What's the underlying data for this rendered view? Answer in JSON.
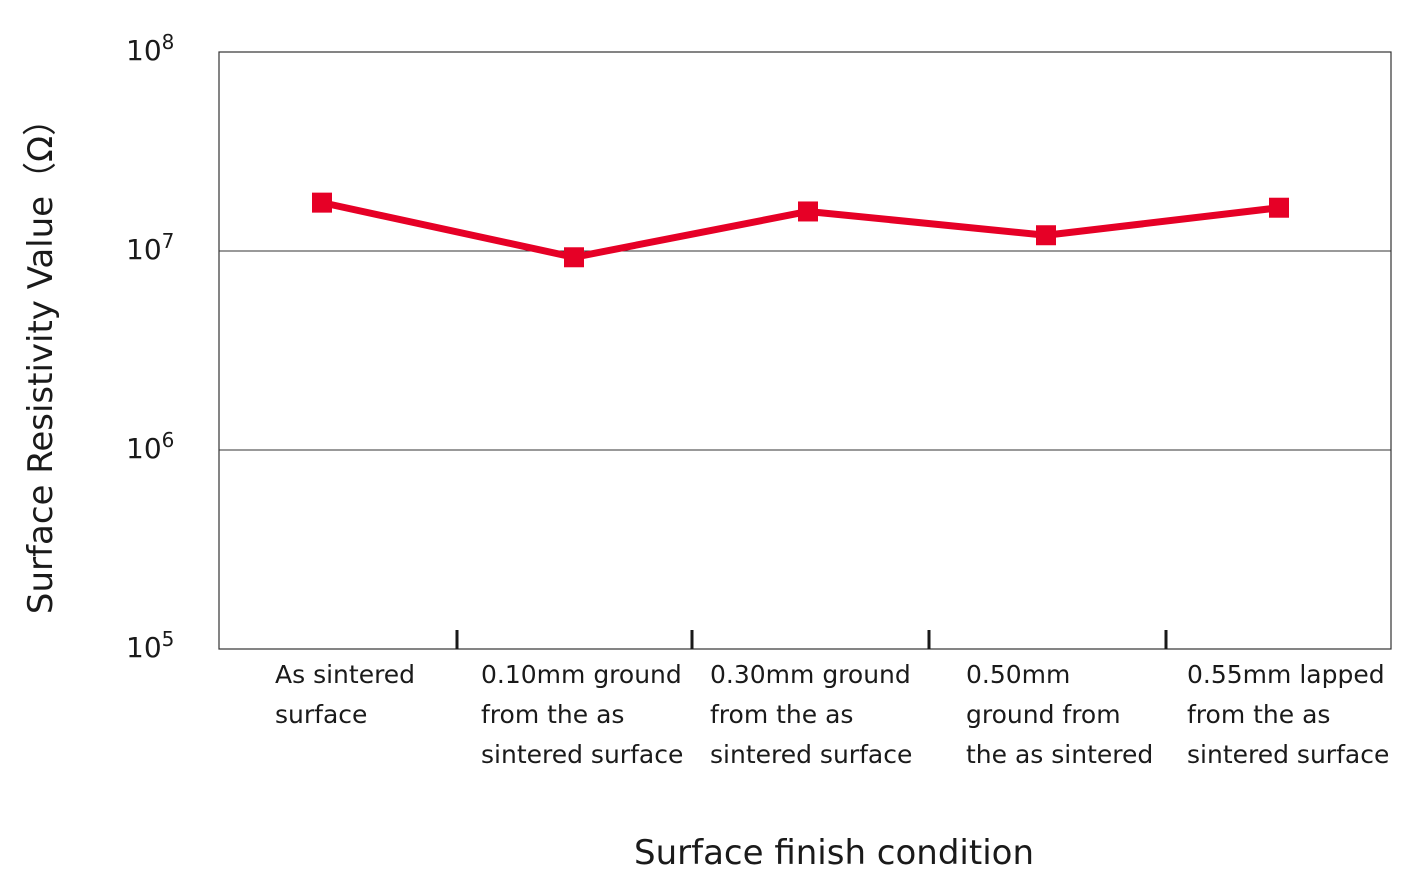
{
  "chart_data": {
    "type": "line",
    "title": "",
    "xlabel": "Surface finish condition",
    "ylabel": "Surface Resistivity Value（Ω）",
    "yscale": "log",
    "ylim": [
      100000,
      100000000
    ],
    "y_ticks": [
      {
        "value": 100000,
        "base": "10",
        "exp": "5"
      },
      {
        "value": 1000000,
        "base": "10",
        "exp": "6"
      },
      {
        "value": 10000000,
        "base": "10",
        "exp": "7"
      },
      {
        "value": 100000000,
        "base": "10",
        "exp": "8"
      }
    ],
    "grid": true,
    "categories": [
      [
        "As sintered",
        "surface"
      ],
      [
        "0.10mm ground",
        "from the as",
        "sintered surface"
      ],
      [
        "0.30mm ground",
        "from the as",
        "sintered surface"
      ],
      [
        "0.50mm",
        "ground from",
        "the as sintered"
      ],
      [
        "0.55mm lapped",
        "from the as",
        "sintered surface"
      ]
    ],
    "series": [
      {
        "values": [
          17500000,
          9300000,
          15800000,
          12000000,
          16500000
        ],
        "color": "#e60026"
      }
    ]
  }
}
